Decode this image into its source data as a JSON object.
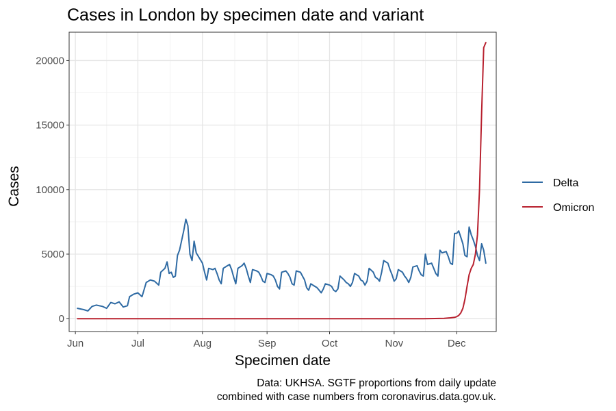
{
  "chart_data": {
    "type": "line",
    "title": "Cases in London by specimen date and variant",
    "xlabel": "Specimen date",
    "ylabel": "Cases",
    "caption_lines": [
      "Data: UKHSA. SGTF proportions from daily update",
      "combined with case numbers from coronavirus.data.gov.uk."
    ],
    "xlim": [
      "2021-05-29",
      "2021-12-20"
    ],
    "ylim": [
      -1000,
      22200
    ],
    "x_ticks": [
      {
        "label": "Jun",
        "date": "2021-06-01"
      },
      {
        "label": "Jul",
        "date": "2021-07-01"
      },
      {
        "label": "Aug",
        "date": "2021-08-01"
      },
      {
        "label": "Sep",
        "date": "2021-09-01"
      },
      {
        "label": "Oct",
        "date": "2021-10-01"
      },
      {
        "label": "Nov",
        "date": "2021-11-01"
      },
      {
        "label": "Dec",
        "date": "2021-12-01"
      }
    ],
    "y_ticks": [
      {
        "label": "0",
        "value": 0
      },
      {
        "label": "5000",
        "value": 5000
      },
      {
        "label": "10000",
        "value": 10000
      },
      {
        "label": "15000",
        "value": 15000
      },
      {
        "label": "20000",
        "value": 20000
      }
    ],
    "grid": true,
    "legend": "right",
    "series": [
      {
        "name": "Delta",
        "color": "#2e6aa3",
        "points": [
          [
            "2021-06-02",
            800
          ],
          [
            "2021-06-05",
            700
          ],
          [
            "2021-06-07",
            600
          ],
          [
            "2021-06-09",
            950
          ],
          [
            "2021-06-11",
            1050
          ],
          [
            "2021-06-14",
            950
          ],
          [
            "2021-06-16",
            800
          ],
          [
            "2021-06-18",
            1250
          ],
          [
            "2021-06-20",
            1150
          ],
          [
            "2021-06-22",
            1300
          ],
          [
            "2021-06-24",
            900
          ],
          [
            "2021-06-26",
            1000
          ],
          [
            "2021-06-27",
            1700
          ],
          [
            "2021-06-29",
            1900
          ],
          [
            "2021-07-01",
            2000
          ],
          [
            "2021-07-03",
            1700
          ],
          [
            "2021-07-05",
            2800
          ],
          [
            "2021-07-07",
            3000
          ],
          [
            "2021-07-09",
            2900
          ],
          [
            "2021-07-11",
            2600
          ],
          [
            "2021-07-12",
            3600
          ],
          [
            "2021-07-14",
            3900
          ],
          [
            "2021-07-15",
            4400
          ],
          [
            "2021-07-16",
            3500
          ],
          [
            "2021-07-17",
            3600
          ],
          [
            "2021-07-18",
            3200
          ],
          [
            "2021-07-19",
            3300
          ],
          [
            "2021-07-20",
            4900
          ],
          [
            "2021-07-21",
            5300
          ],
          [
            "2021-07-23",
            6800
          ],
          [
            "2021-07-24",
            7700
          ],
          [
            "2021-07-25",
            7200
          ],
          [
            "2021-07-26",
            5000
          ],
          [
            "2021-07-27",
            4500
          ],
          [
            "2021-07-28",
            6000
          ],
          [
            "2021-07-29",
            5100
          ],
          [
            "2021-08-01",
            4300
          ],
          [
            "2021-08-02",
            3600
          ],
          [
            "2021-08-03",
            3000
          ],
          [
            "2021-08-04",
            3900
          ],
          [
            "2021-08-06",
            3800
          ],
          [
            "2021-08-07",
            3900
          ],
          [
            "2021-08-08",
            3500
          ],
          [
            "2021-08-09",
            3000
          ],
          [
            "2021-08-10",
            2700
          ],
          [
            "2021-08-11",
            3900
          ],
          [
            "2021-08-13",
            4100
          ],
          [
            "2021-08-14",
            4200
          ],
          [
            "2021-08-15",
            3800
          ],
          [
            "2021-08-16",
            3200
          ],
          [
            "2021-08-17",
            2700
          ],
          [
            "2021-08-18",
            3900
          ],
          [
            "2021-08-20",
            4100
          ],
          [
            "2021-08-21",
            4300
          ],
          [
            "2021-08-22",
            3900
          ],
          [
            "2021-08-23",
            3300
          ],
          [
            "2021-08-24",
            2800
          ],
          [
            "2021-08-25",
            3800
          ],
          [
            "2021-08-27",
            3700
          ],
          [
            "2021-08-28",
            3600
          ],
          [
            "2021-08-29",
            3300
          ],
          [
            "2021-08-30",
            2900
          ],
          [
            "2021-08-31",
            2800
          ],
          [
            "2021-09-01",
            3500
          ],
          [
            "2021-09-03",
            3400
          ],
          [
            "2021-09-04",
            3300
          ],
          [
            "2021-09-05",
            3000
          ],
          [
            "2021-09-06",
            2500
          ],
          [
            "2021-09-07",
            2300
          ],
          [
            "2021-09-08",
            3600
          ],
          [
            "2021-09-10",
            3700
          ],
          [
            "2021-09-11",
            3500
          ],
          [
            "2021-09-12",
            3200
          ],
          [
            "2021-09-13",
            2700
          ],
          [
            "2021-09-14",
            2600
          ],
          [
            "2021-09-15",
            3700
          ],
          [
            "2021-09-17",
            3600
          ],
          [
            "2021-09-18",
            3300
          ],
          [
            "2021-09-19",
            3000
          ],
          [
            "2021-09-20",
            2400
          ],
          [
            "2021-09-21",
            2200
          ],
          [
            "2021-09-22",
            2700
          ],
          [
            "2021-09-24",
            2500
          ],
          [
            "2021-09-25",
            2400
          ],
          [
            "2021-09-26",
            2200
          ],
          [
            "2021-09-27",
            2000
          ],
          [
            "2021-09-28",
            2300
          ],
          [
            "2021-09-29",
            2700
          ],
          [
            "2021-10-01",
            2600
          ],
          [
            "2021-10-02",
            2500
          ],
          [
            "2021-10-03",
            2200
          ],
          [
            "2021-10-04",
            2100
          ],
          [
            "2021-10-05",
            2300
          ],
          [
            "2021-10-06",
            3300
          ],
          [
            "2021-10-08",
            3000
          ],
          [
            "2021-10-09",
            2800
          ],
          [
            "2021-10-10",
            2700
          ],
          [
            "2021-10-11",
            2500
          ],
          [
            "2021-10-12",
            2800
          ],
          [
            "2021-10-13",
            3500
          ],
          [
            "2021-10-15",
            3300
          ],
          [
            "2021-10-16",
            3000
          ],
          [
            "2021-10-17",
            2900
          ],
          [
            "2021-10-18",
            2600
          ],
          [
            "2021-10-19",
            2900
          ],
          [
            "2021-10-20",
            3900
          ],
          [
            "2021-10-22",
            3600
          ],
          [
            "2021-10-23",
            3200
          ],
          [
            "2021-10-24",
            3100
          ],
          [
            "2021-10-25",
            2900
          ],
          [
            "2021-10-26",
            3600
          ],
          [
            "2021-10-27",
            4500
          ],
          [
            "2021-10-29",
            4300
          ],
          [
            "2021-10-30",
            3800
          ],
          [
            "2021-10-31",
            3400
          ],
          [
            "2021-11-01",
            2900
          ],
          [
            "2021-11-02",
            3100
          ],
          [
            "2021-11-03",
            3800
          ],
          [
            "2021-11-05",
            3600
          ],
          [
            "2021-11-06",
            3300
          ],
          [
            "2021-11-07",
            3100
          ],
          [
            "2021-11-08",
            2800
          ],
          [
            "2021-11-09",
            3200
          ],
          [
            "2021-11-10",
            4000
          ],
          [
            "2021-11-12",
            4100
          ],
          [
            "2021-11-13",
            3700
          ],
          [
            "2021-11-14",
            3400
          ],
          [
            "2021-11-15",
            3300
          ],
          [
            "2021-11-16",
            5000
          ],
          [
            "2021-11-17",
            4200
          ],
          [
            "2021-11-19",
            4300
          ],
          [
            "2021-11-20",
            3900
          ],
          [
            "2021-11-21",
            3500
          ],
          [
            "2021-11-22",
            3300
          ],
          [
            "2021-11-23",
            5300
          ],
          [
            "2021-11-24",
            5100
          ],
          [
            "2021-11-26",
            5200
          ],
          [
            "2021-11-27",
            4800
          ],
          [
            "2021-11-28",
            4300
          ],
          [
            "2021-11-29",
            4200
          ],
          [
            "2021-11-30",
            6600
          ],
          [
            "2021-12-01",
            6600
          ],
          [
            "2021-12-02",
            6800
          ],
          [
            "2021-12-03",
            6300
          ],
          [
            "2021-12-04",
            5800
          ],
          [
            "2021-12-05",
            4900
          ],
          [
            "2021-12-06",
            4800
          ],
          [
            "2021-12-07",
            7100
          ],
          [
            "2021-12-08",
            6500
          ],
          [
            "2021-12-09",
            6100
          ],
          [
            "2021-12-10",
            5600
          ],
          [
            "2021-12-11",
            4900
          ],
          [
            "2021-12-12",
            4500
          ],
          [
            "2021-12-13",
            5800
          ],
          [
            "2021-12-14",
            5300
          ],
          [
            "2021-12-15",
            4300
          ]
        ]
      },
      {
        "name": "Omicron",
        "color": "#b8212f",
        "points": [
          [
            "2021-06-02",
            0
          ],
          [
            "2021-11-15",
            0
          ],
          [
            "2021-11-25",
            20
          ],
          [
            "2021-11-28",
            60
          ],
          [
            "2021-11-30",
            100
          ],
          [
            "2021-12-01",
            150
          ],
          [
            "2021-12-02",
            250
          ],
          [
            "2021-12-03",
            450
          ],
          [
            "2021-12-04",
            800
          ],
          [
            "2021-12-05",
            1500
          ],
          [
            "2021-12-06",
            2500
          ],
          [
            "2021-12-07",
            3400
          ],
          [
            "2021-12-08",
            3900
          ],
          [
            "2021-12-09",
            4200
          ],
          [
            "2021-12-10",
            5000
          ],
          [
            "2021-12-11",
            6500
          ],
          [
            "2021-12-12",
            10000
          ],
          [
            "2021-12-13",
            16000
          ],
          [
            "2021-12-14",
            21000
          ],
          [
            "2021-12-15",
            21400
          ]
        ]
      }
    ]
  }
}
